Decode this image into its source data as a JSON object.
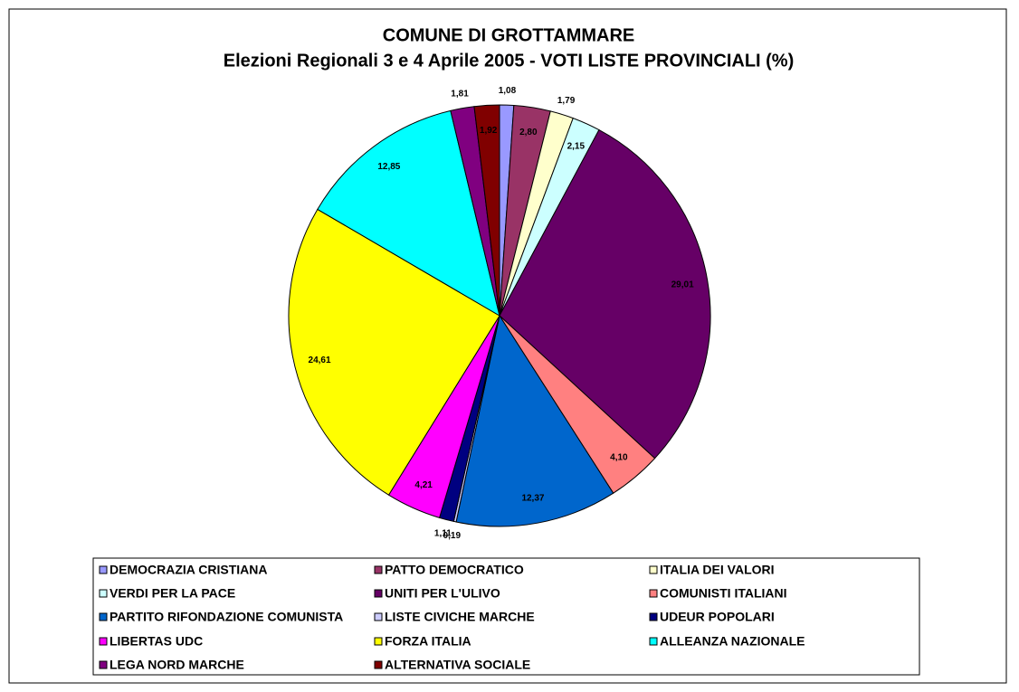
{
  "chart_data": {
    "type": "pie",
    "title": "COMUNE DI GROTTAMMARE",
    "subtitle": "Elezioni Regionali 3 e 4 Aprile 2005 - VOTI LISTE PROVINCIALI (%)",
    "categories": [
      "DEMOCRAZIA CRISTIANA",
      "PATTO DEMOCRATICO",
      "ITALIA DEI VALORI",
      "VERDI PER LA PACE",
      "UNITI PER L'ULIVO",
      "COMUNISTI ITALIANI",
      "PARTITO RIFONDAZIONE COMUNISTA",
      "LISTE CIVICHE MARCHE",
      "UDEUR POPOLARI",
      "LIBERTAS UDC",
      "FORZA ITALIA",
      "ALLEANZA NAZIONALE",
      "LEGA NORD MARCHE",
      "ALTERNATIVA SOCIALE"
    ],
    "values": [
      1.08,
      2.8,
      1.79,
      2.15,
      29.01,
      4.1,
      12.37,
      0.19,
      1.11,
      4.21,
      24.61,
      12.85,
      1.81,
      1.92
    ],
    "value_labels": [
      "1,08",
      "2,80",
      "1,79",
      "2,15",
      "29,01",
      "4,10",
      "12,37",
      "0,19",
      "1,11",
      "4,21",
      "24,61",
      "12,85",
      "1,81",
      "1,92"
    ],
    "colors": [
      "#9999ff",
      "#993366",
      "#ffffcc",
      "#ccffff",
      "#660066",
      "#ff8080",
      "#0066cc",
      "#ccccff",
      "#000080",
      "#ff00ff",
      "#ffff00",
      "#00ffff",
      "#800080",
      "#800000"
    ]
  }
}
